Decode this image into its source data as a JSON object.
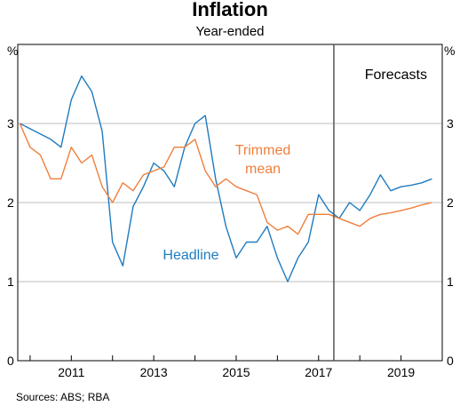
{
  "chart_data": {
    "type": "line",
    "title": "Inflation",
    "subtitle": "Year-ended",
    "y_unit_left": "%",
    "y_unit_right": "%",
    "ylim": [
      0,
      4
    ],
    "yticks": [
      0,
      1,
      2,
      3
    ],
    "grid": true,
    "xlim": [
      2009.7,
      2020.0
    ],
    "xtick_labels": [
      "2011",
      "2013",
      "2015",
      "2017",
      "2019"
    ],
    "xtick_positions": [
      2011,
      2013,
      2015,
      2017,
      2019
    ],
    "forecast_start": 2017.37,
    "forecast_label": "Forecasts",
    "source": "Sources:   ABS; RBA",
    "colors": {
      "headline": "#1f7bbf",
      "trimmed": "#f07f3c",
      "grid": "#bdbdbd",
      "divider": "#555555"
    },
    "series": [
      {
        "name": "Headline",
        "label_lines": [
          "Headline"
        ],
        "color": "#1f7bbf",
        "x": [
          2009.75,
          2010.5,
          2010.75,
          2011.0,
          2011.25,
          2011.5,
          2011.75,
          2012.0,
          2012.25,
          2012.5,
          2012.75,
          2013.0,
          2013.25,
          2013.5,
          2013.75,
          2014.0,
          2014.25,
          2014.5,
          2014.75,
          2015.0,
          2015.25,
          2015.5,
          2015.75,
          2016.0,
          2016.25,
          2016.5,
          2016.75,
          2017.0,
          2017.25,
          2017.5,
          2017.75,
          2018.0,
          2018.25,
          2018.5,
          2018.75,
          2019.0,
          2019.25,
          2019.5,
          2019.75
        ],
        "values": [
          3.0,
          2.8,
          2.7,
          3.3,
          3.6,
          3.4,
          2.9,
          1.5,
          1.2,
          1.95,
          2.2,
          2.5,
          2.4,
          2.2,
          2.7,
          3.0,
          3.1,
          2.3,
          1.7,
          1.3,
          1.5,
          1.5,
          1.7,
          1.3,
          1.0,
          1.3,
          1.5,
          2.1,
          1.9,
          1.8,
          2.0,
          1.9,
          2.1,
          2.35,
          2.15,
          2.2,
          2.22,
          2.25,
          2.3
        ]
      },
      {
        "name": "Trimmed mean",
        "label_lines": [
          "Trimmed",
          "mean"
        ],
        "color": "#f07f3c",
        "x": [
          2009.75,
          2010.0,
          2010.25,
          2010.5,
          2010.75,
          2011.0,
          2011.25,
          2011.5,
          2011.75,
          2012.0,
          2012.25,
          2012.5,
          2012.75,
          2013.0,
          2013.25,
          2013.5,
          2013.75,
          2014.0,
          2014.25,
          2014.5,
          2014.75,
          2015.0,
          2015.25,
          2015.5,
          2015.75,
          2016.0,
          2016.25,
          2016.5,
          2016.75,
          2017.0,
          2017.25,
          2017.5,
          2017.75,
          2018.0,
          2018.25,
          2018.5,
          2018.75,
          2019.0,
          2019.25,
          2019.5,
          2019.75
        ],
        "values": [
          3.0,
          2.7,
          2.6,
          2.3,
          2.3,
          2.7,
          2.5,
          2.6,
          2.2,
          2.0,
          2.25,
          2.15,
          2.35,
          2.4,
          2.45,
          2.7,
          2.7,
          2.8,
          2.4,
          2.2,
          2.3,
          2.2,
          2.15,
          2.1,
          1.75,
          1.65,
          1.7,
          1.6,
          1.85,
          1.85,
          1.85,
          1.8,
          1.75,
          1.7,
          1.8,
          1.85,
          1.87,
          1.9,
          1.93,
          1.97,
          2.0
        ]
      }
    ]
  }
}
